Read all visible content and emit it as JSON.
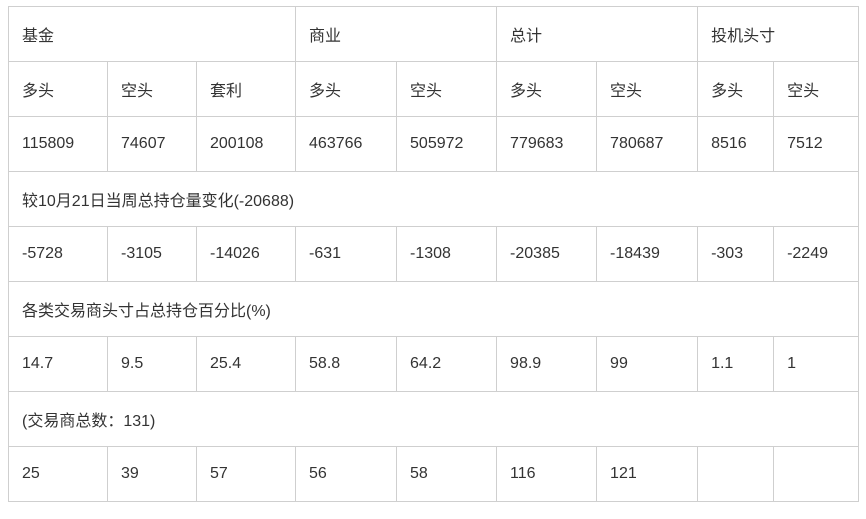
{
  "header": {
    "fund": "基金",
    "commercial": "商业",
    "total": "总计",
    "speculative": "投机头寸"
  },
  "subheader": [
    "多头",
    "空头",
    "套利",
    "多头",
    "空头",
    "多头",
    "空头",
    "多头",
    "空头"
  ],
  "positions": [
    "115809",
    "74607",
    "200108",
    "463766",
    "505972",
    "779683",
    "780687",
    "8516",
    "7512"
  ],
  "change_title": "较10月21日当周总持仓量变化(-20688)",
  "changes": [
    "-5728",
    "-3105",
    "-14026",
    "-631",
    "-1308",
    "-20385",
    "-18439",
    "-303",
    "-2249"
  ],
  "percent_title": "各类交易商头寸占总持仓百分比(%)",
  "percents": [
    "14.7",
    "9.5",
    "25.4",
    "58.8",
    "64.2",
    "98.9",
    "99",
    "1.1",
    "1"
  ],
  "traders_title": "(交易商总数：131)",
  "traders": [
    "25",
    "39",
    "57",
    "56",
    "58",
    "116",
    "121",
    "",
    ""
  ]
}
